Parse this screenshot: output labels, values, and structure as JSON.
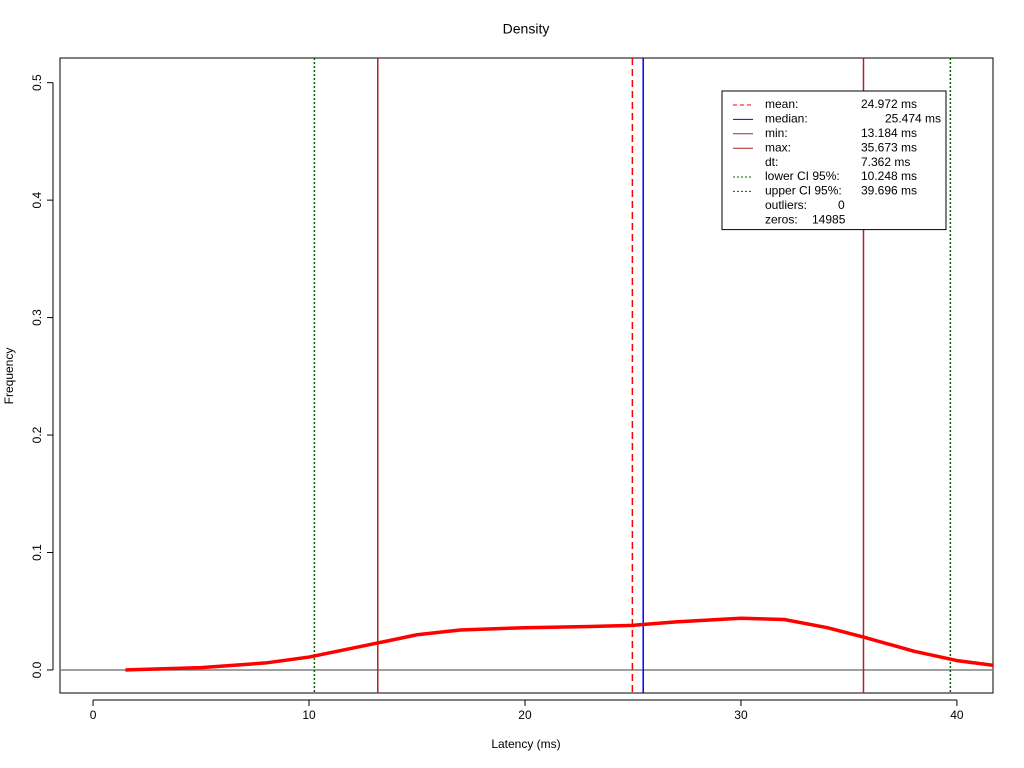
{
  "chart_data": {
    "type": "line",
    "title": "Density",
    "x_label": "Latency (ms)",
    "y_label": "Frequency",
    "x": [
      1.5,
      5,
      8,
      10,
      13.184,
      15,
      17,
      20,
      23,
      25,
      27,
      30,
      32,
      34,
      35.673,
      38,
      40,
      41.67
    ],
    "values": [
      0.0,
      0.002,
      0.006,
      0.011,
      0.023,
      0.03,
      0.034,
      0.036,
      0.037,
      0.038,
      0.041,
      0.044,
      0.043,
      0.036,
      0.028,
      0.016,
      0.008,
      0.004
    ],
    "color": "#ff0000",
    "xlim": [
      -1.53,
      41.67
    ],
    "ylim": [
      -0.0196,
      0.521
    ],
    "xticks": [
      0,
      10,
      20,
      30,
      40
    ],
    "yticks": [
      {
        "value": 0,
        "label": "0.0"
      },
      0.1,
      0.2,
      0.3,
      0.4,
      0.5
    ],
    "legend_position": "top-right",
    "legend": [
      {
        "label": "mean:",
        "text": "24.972 ms",
        "value": 24.972,
        "color": "#ff0000",
        "style": "dashed"
      },
      {
        "label": "median:",
        "text": "25.474 ms",
        "value": 25.474,
        "color": "#0000ff",
        "style": "solid"
      },
      {
        "label": "min:",
        "text": "13.184 ms",
        "value": 13.184,
        "color": "#b22222",
        "style": "solid"
      },
      {
        "label": "max:",
        "text": "35.673 ms",
        "value": 35.673,
        "color": "#b22222",
        "style": "solid"
      },
      {
        "label": "dt:",
        "text": "7.362 ms"
      },
      {
        "label": "lower CI 95%:",
        "text": "10.248 ms",
        "value": 10.248,
        "color": "#006400",
        "style": "dotted"
      },
      {
        "label": "upper CI 95%:",
        "text": "39.696 ms",
        "value": 39.696,
        "color": "#006400",
        "style": "dotted"
      },
      {
        "label": "outliers:",
        "text": "0"
      },
      {
        "label": "zeros:",
        "text": "14985"
      }
    ]
  }
}
